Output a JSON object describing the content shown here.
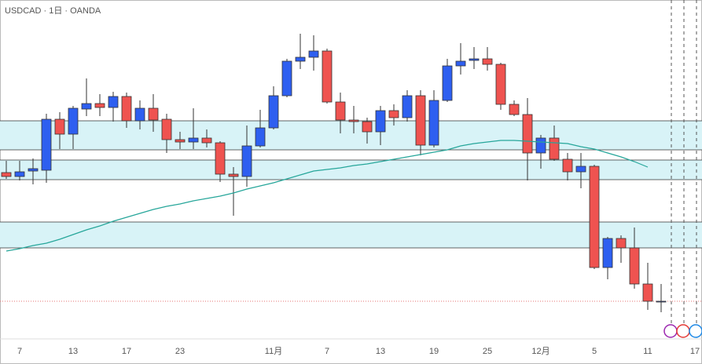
{
  "chart_data": {
    "type": "candlestick",
    "title": "USDCAD · 1日 · OANDA",
    "categories": [
      null,
      "7",
      null,
      null,
      null,
      "13",
      null,
      null,
      null,
      "17",
      null,
      null,
      null,
      "23",
      null,
      null,
      null,
      null,
      null,
      null,
      "11月",
      null,
      null,
      null,
      "7",
      null,
      null,
      null,
      "13",
      null,
      null,
      null,
      "19",
      null,
      null,
      null,
      "25",
      null,
      null,
      null,
      "12月",
      null,
      null,
      null,
      "5",
      null,
      null,
      null,
      "11",
      null,
      null,
      null,
      "17"
    ],
    "open": [
      244,
      239,
      246,
      247,
      312,
      293,
      325,
      332,
      327,
      341,
      310,
      326,
      312,
      286,
      283,
      288,
      282,
      242,
      239,
      278,
      301,
      342,
      386,
      391,
      399,
      334,
      311,
      309,
      296,
      323,
      314,
      342,
      279,
      336,
      380,
      387,
      389,
      382,
      331,
      318,
      269,
      288,
      261,
      245,
      252,
      123,
      160,
      148,
      102,
      80,
      null,
      null,
      null
    ],
    "high": [
      259,
      259,
      262,
      319,
      321,
      329,
      364,
      344,
      347,
      346,
      336,
      344,
      319,
      296,
      326,
      299,
      284,
      251,
      304,
      324,
      354,
      389,
      421,
      419,
      402,
      346,
      329,
      314,
      329,
      331,
      349,
      349,
      349,
      389,
      409,
      404,
      404,
      384,
      336,
      339,
      292,
      304,
      269,
      269,
      254,
      162,
      164,
      174,
      129,
      102,
      null,
      null,
      null
    ],
    "low": [
      236,
      234,
      229,
      231,
      274,
      274,
      316,
      316,
      309,
      301,
      299,
      296,
      269,
      274,
      274,
      276,
      232,
      189,
      226,
      276,
      299,
      340,
      376,
      374,
      332,
      294,
      294,
      281,
      279,
      304,
      309,
      266,
      276,
      334,
      369,
      376,
      374,
      324,
      316,
      234,
      249,
      259,
      234,
      224,
      121,
      108,
      129,
      96,
      69,
      66,
      null,
      null,
      null
    ],
    "close": [
      239,
      245,
      249,
      312,
      293,
      326,
      332,
      327,
      341,
      310,
      326,
      311,
      286,
      283,
      288,
      282,
      242,
      239,
      278,
      301,
      342,
      386,
      391,
      399,
      334,
      311,
      309,
      296,
      323,
      314,
      342,
      279,
      336,
      380,
      386,
      389,
      382,
      331,
      318,
      269,
      288,
      261,
      245,
      252,
      123,
      160,
      148,
      102,
      80,
      80,
      null,
      null,
      null
    ],
    "up_color": "#2e5ff0",
    "down_color": "#ef5350",
    "ma": {
      "color": "#26a69a",
      "values": [
        144,
        147,
        151,
        154,
        159,
        165,
        171,
        176,
        182,
        187,
        192,
        197,
        201,
        204,
        208,
        211,
        214,
        218,
        223,
        227,
        231,
        236,
        241,
        246,
        248,
        250,
        253,
        255,
        258,
        261,
        264,
        267,
        270,
        273,
        278,
        281,
        283,
        285,
        285,
        284,
        283,
        282,
        281,
        277,
        274,
        269,
        264,
        258,
        251,
        null,
        null,
        null,
        null
      ]
    },
    "zones": [
      [
        273,
        310
      ],
      [
        235,
        260
      ],
      [
        148,
        181
      ]
    ],
    "zone_color": "#d8f3f7",
    "price_line": 80,
    "price_line_color": "#e57373",
    "ylim": [
      0,
      464
    ]
  }
}
